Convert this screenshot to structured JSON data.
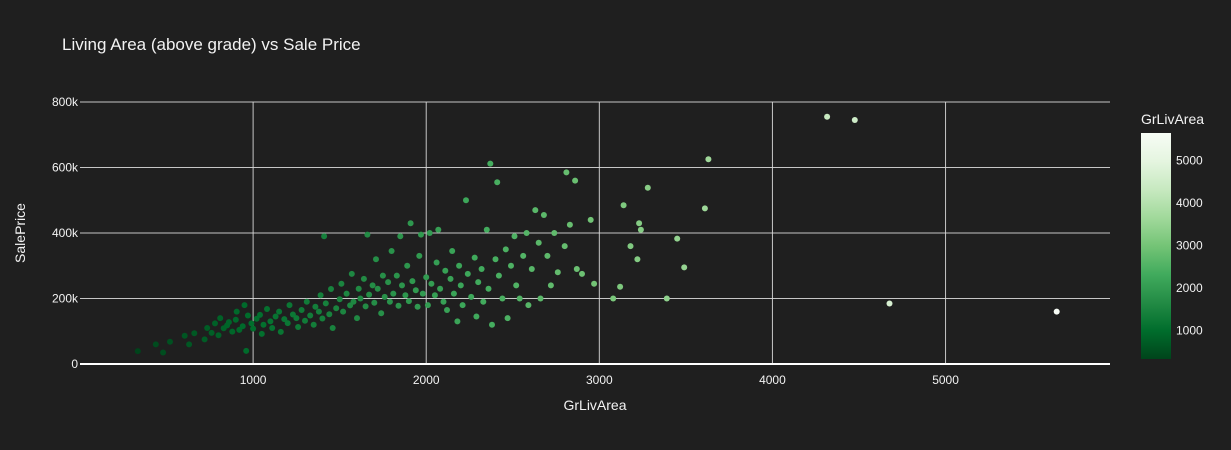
{
  "chart_data": {
    "type": "scatter",
    "title": "Living Area (above grade) vs Sale Price",
    "xlabel": "GrLivArea",
    "ylabel": "SalePrice",
    "xlim": [
      0,
      5950
    ],
    "ylim": [
      0,
      800000
    ],
    "x_ticks": [
      1000,
      2000,
      3000,
      4000,
      5000
    ],
    "x_tick_labels": [
      "1000",
      "2000",
      "3000",
      "4000",
      "5000"
    ],
    "y_ticks": [
      0,
      200000,
      400000,
      600000,
      800000
    ],
    "y_tick_labels": [
      "0",
      "200k",
      "400k",
      "600k",
      "800k"
    ],
    "grid": true,
    "colorbar": {
      "title": "GrLivArea",
      "min": 330,
      "max": 5642,
      "ticks": [
        1000,
        2000,
        3000,
        4000,
        5000
      ],
      "tick_labels": [
        "1000",
        "2000",
        "3000",
        "4000",
        "5000"
      ],
      "colors": [
        "#00441b",
        "#006d2c",
        "#238b45",
        "#41ab5d",
        "#74c476",
        "#a1d99b",
        "#c7e9c0",
        "#e5f5e0",
        "#f7fcf5"
      ]
    },
    "series": [
      {
        "points": [
          [
            334,
            39300
          ],
          [
            438,
            60000
          ],
          [
            480,
            35000
          ],
          [
            520,
            68000
          ],
          [
            605,
            86000
          ],
          [
            630,
            60000
          ],
          [
            660,
            94000
          ],
          [
            720,
            75000
          ],
          [
            735,
            110000
          ],
          [
            760,
            95000
          ],
          [
            780,
            124000
          ],
          [
            800,
            88000
          ],
          [
            810,
            140000
          ],
          [
            830,
            109000
          ],
          [
            850,
            118000
          ],
          [
            860,
            128000
          ],
          [
            880,
            99000
          ],
          [
            900,
            135000
          ],
          [
            905,
            160000
          ],
          [
            920,
            104000
          ],
          [
            940,
            115000
          ],
          [
            950,
            180000
          ],
          [
            960,
            40000
          ],
          [
            970,
            148000
          ],
          [
            990,
            124000
          ],
          [
            1000,
            108000
          ],
          [
            1020,
            138000
          ],
          [
            1040,
            150000
          ],
          [
            1050,
            92000
          ],
          [
            1060,
            120000
          ],
          [
            1080,
            168000
          ],
          [
            1100,
            130000
          ],
          [
            1110,
            110000
          ],
          [
            1130,
            145000
          ],
          [
            1150,
            160000
          ],
          [
            1160,
            98000
          ],
          [
            1180,
            137000
          ],
          [
            1200,
            125000
          ],
          [
            1210,
            180000
          ],
          [
            1230,
            151000
          ],
          [
            1250,
            140000
          ],
          [
            1260,
            113000
          ],
          [
            1280,
            165000
          ],
          [
            1300,
            132000
          ],
          [
            1310,
            190000
          ],
          [
            1330,
            148000
          ],
          [
            1350,
            120000
          ],
          [
            1360,
            175000
          ],
          [
            1380,
            160000
          ],
          [
            1390,
            210000
          ],
          [
            1400,
            139000
          ],
          [
            1410,
            390000
          ],
          [
            1420,
            185000
          ],
          [
            1440,
            152000
          ],
          [
            1450,
            229000
          ],
          [
            1460,
            110000
          ],
          [
            1480,
            170000
          ],
          [
            1500,
            198000
          ],
          [
            1510,
            245000
          ],
          [
            1520,
            160000
          ],
          [
            1540,
            215000
          ],
          [
            1560,
            179000
          ],
          [
            1570,
            275000
          ],
          [
            1580,
            190000
          ],
          [
            1600,
            140000
          ],
          [
            1610,
            230000
          ],
          [
            1620,
            200000
          ],
          [
            1640,
            260000
          ],
          [
            1650,
            176000
          ],
          [
            1660,
            395000
          ],
          [
            1670,
            212000
          ],
          [
            1690,
            240000
          ],
          [
            1700,
            187000
          ],
          [
            1710,
            320000
          ],
          [
            1720,
            230000
          ],
          [
            1740,
            155000
          ],
          [
            1750,
            270000
          ],
          [
            1760,
            205000
          ],
          [
            1780,
            250000
          ],
          [
            1790,
            190000
          ],
          [
            1800,
            345000
          ],
          [
            1810,
            215000
          ],
          [
            1830,
            270000
          ],
          [
            1840,
            178000
          ],
          [
            1850,
            390000
          ],
          [
            1860,
            240000
          ],
          [
            1880,
            210000
          ],
          [
            1890,
            300000
          ],
          [
            1900,
            192000
          ],
          [
            1910,
            430000
          ],
          [
            1920,
            253000
          ],
          [
            1940,
            225000
          ],
          [
            1950,
            175000
          ],
          [
            1960,
            330000
          ],
          [
            1970,
            395000
          ],
          [
            1980,
            215000
          ],
          [
            2000,
            265000
          ],
          [
            2010,
            180000
          ],
          [
            2020,
            400000
          ],
          [
            2030,
            245000
          ],
          [
            2050,
            210000
          ],
          [
            2060,
            310000
          ],
          [
            2070,
            410000
          ],
          [
            2080,
            230000
          ],
          [
            2100,
            190000
          ],
          [
            2110,
            285000
          ],
          [
            2120,
            165000
          ],
          [
            2140,
            260000
          ],
          [
            2150,
            345000
          ],
          [
            2160,
            215000
          ],
          [
            2180,
            130000
          ],
          [
            2190,
            300000
          ],
          [
            2200,
            240000
          ],
          [
            2210,
            180000
          ],
          [
            2230,
            500000
          ],
          [
            2240,
            275000
          ],
          [
            2260,
            205000
          ],
          [
            2280,
            325000
          ],
          [
            2290,
            145000
          ],
          [
            2300,
            250000
          ],
          [
            2320,
            290000
          ],
          [
            2330,
            190000
          ],
          [
            2350,
            410000
          ],
          [
            2360,
            230000
          ],
          [
            2370,
            612000
          ],
          [
            2380,
            120000
          ],
          [
            2400,
            320000
          ],
          [
            2410,
            555000
          ],
          [
            2420,
            270000
          ],
          [
            2440,
            200000
          ],
          [
            2460,
            350000
          ],
          [
            2470,
            140000
          ],
          [
            2490,
            300000
          ],
          [
            2510,
            390000
          ],
          [
            2520,
            240000
          ],
          [
            2540,
            200000
          ],
          [
            2560,
            330000
          ],
          [
            2580,
            400000
          ],
          [
            2590,
            180000
          ],
          [
            2610,
            290000
          ],
          [
            2630,
            470000
          ],
          [
            2650,
            370000
          ],
          [
            2660,
            200000
          ],
          [
            2680,
            455000
          ],
          [
            2700,
            330000
          ],
          [
            2720,
            240000
          ],
          [
            2740,
            400000
          ],
          [
            2760,
            280000
          ],
          [
            2800,
            360000
          ],
          [
            2810,
            585000
          ],
          [
            2830,
            425000
          ],
          [
            2860,
            560000
          ],
          [
            2870,
            290000
          ],
          [
            2900,
            275000
          ],
          [
            2950,
            440000
          ],
          [
            2970,
            245000
          ],
          [
            3080,
            200000
          ],
          [
            3120,
            236000
          ],
          [
            3140,
            485000
          ],
          [
            3180,
            360000
          ],
          [
            3220,
            320000
          ],
          [
            3230,
            430000
          ],
          [
            3240,
            410000
          ],
          [
            3280,
            538000
          ],
          [
            3390,
            200000
          ],
          [
            3450,
            383000
          ],
          [
            3490,
            295000
          ],
          [
            3610,
            475000
          ],
          [
            3630,
            625000
          ],
          [
            4316,
            755000
          ],
          [
            4476,
            745000
          ],
          [
            4676,
            184750
          ],
          [
            5642,
            160000
          ]
        ]
      }
    ]
  }
}
